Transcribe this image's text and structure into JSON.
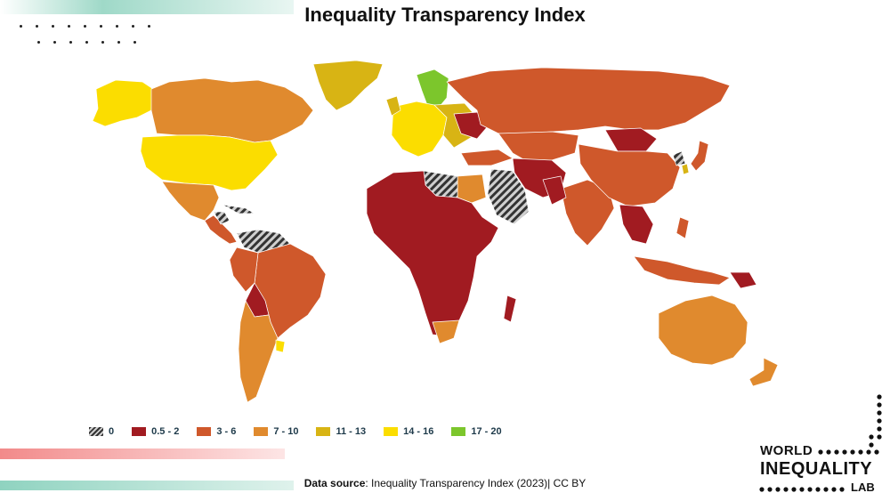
{
  "title": "Inequality Transparency Index",
  "legend": [
    {
      "label": "0",
      "color": "hatch"
    },
    {
      "label": "0.5 - 2",
      "color": "#a11b21"
    },
    {
      "label": "3 - 6",
      "color": "#cf582b"
    },
    {
      "label": "7 - 10",
      "color": "#e08a2e"
    },
    {
      "label": "11 - 13",
      "color": "#d8b414"
    },
    {
      "label": "14 - 16",
      "color": "#fbdd00"
    },
    {
      "label": "17 - 20",
      "color": "#7cc62c"
    }
  ],
  "source": {
    "prefix": "Data source",
    "text": ":  Inequality Transparency Index (2023)| CC BY"
  },
  "logo": {
    "line1": "WORLD",
    "line2": "INEQUALITY",
    "line3": "LAB"
  },
  "colors": {
    "bin_0_5_2": "#a11b21",
    "bin_3_6": "#cf582b",
    "bin_7_10": "#e08a2e",
    "bin_11_13": "#d8b414",
    "bin_14_16": "#fbdd00",
    "bin_17_20": "#7cc62c"
  }
}
